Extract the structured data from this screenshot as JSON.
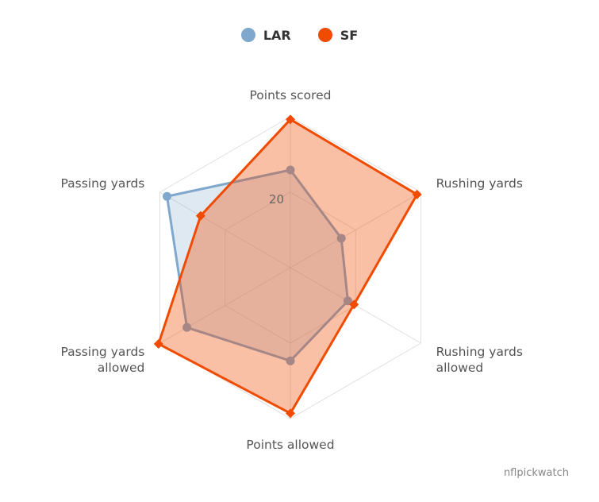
{
  "chart_data": {
    "type": "radar",
    "axes": [
      "Points scored",
      "Rushing yards",
      "Rushing yards allowed",
      "Points allowed",
      "Passing yards allowed",
      "Passing yards"
    ],
    "axis_label_lines": [
      [
        "Points scored"
      ],
      [
        "Rushing yards"
      ],
      [
        "Rushing yards",
        "allowed"
      ],
      [
        "Points allowed"
      ],
      [
        "Passing yards",
        "allowed"
      ],
      [
        "Passing yards"
      ]
    ],
    "tick_labels": [
      "20"
    ],
    "tick_values": [
      20
    ],
    "rmax": 40,
    "grid": true,
    "legend_position": "top-center",
    "series": [
      {
        "name": "LAR",
        "color": "#7fa8cc",
        "marker": "circle",
        "values": [
          25.9,
          15.6,
          17.6,
          24.7,
          31.7,
          37.8
        ]
      },
      {
        "name": "SF",
        "color": "#f04b00",
        "marker": "diamond",
        "values": [
          39.3,
          38.8,
          19.5,
          38.6,
          40.4,
          27.5
        ]
      }
    ]
  },
  "credit": "nflpickwatch"
}
